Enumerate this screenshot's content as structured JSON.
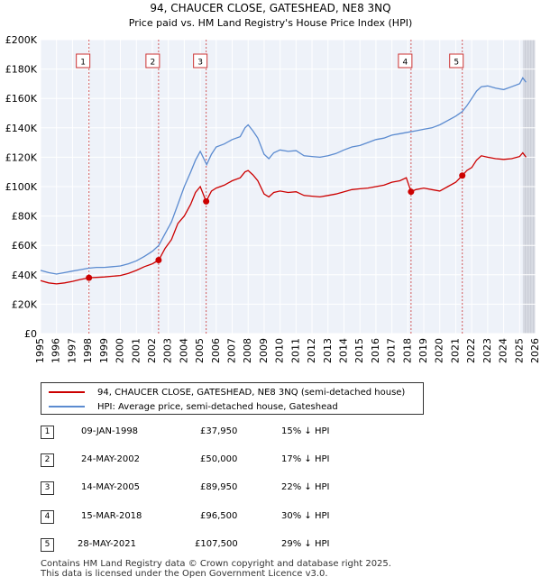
{
  "chart_data": {
    "type": "line",
    "title": "94, CHAUCER CLOSE, GATESHEAD, NE8 3NQ",
    "subtitle": "Price paid vs. HM Land Registry's House Price Index (HPI)",
    "x_range": [
      1995,
      2026
    ],
    "y_range": [
      0,
      200000
    ],
    "x_ticks": [
      "1995",
      "1996",
      "1997",
      "1998",
      "1999",
      "2000",
      "2001",
      "2002",
      "2003",
      "2004",
      "2005",
      "2006",
      "2007",
      "2008",
      "2009",
      "2010",
      "2011",
      "2012",
      "2013",
      "2014",
      "2015",
      "2016",
      "2017",
      "2018",
      "2019",
      "2020",
      "2021",
      "2022",
      "2023",
      "2024",
      "2025",
      "2026"
    ],
    "y_ticks": [
      {
        "value": 0,
        "label": "£0"
      },
      {
        "value": 20000,
        "label": "£20K"
      },
      {
        "value": 40000,
        "label": "£40K"
      },
      {
        "value": 60000,
        "label": "£60K"
      },
      {
        "value": 80000,
        "label": "£80K"
      },
      {
        "value": 100000,
        "label": "£100K"
      },
      {
        "value": 120000,
        "label": "£120K"
      },
      {
        "value": 140000,
        "label": "£140K"
      },
      {
        "value": 160000,
        "label": "£160K"
      },
      {
        "value": 180000,
        "label": "£180K"
      },
      {
        "value": 200000,
        "label": "£200K"
      }
    ],
    "series": [
      {
        "name": "94, CHAUCER CLOSE, GATESHEAD, NE8 3NQ (semi-detached house)",
        "color": "#cc0000",
        "points": [
          [
            1995.0,
            36000
          ],
          [
            1995.5,
            34500
          ],
          [
            1996.0,
            33800
          ],
          [
            1996.5,
            34500
          ],
          [
            1997.0,
            35500
          ],
          [
            1997.5,
            36800
          ],
          [
            1998.03,
            37950
          ],
          [
            1998.5,
            38200
          ],
          [
            1999.0,
            38500
          ],
          [
            1999.5,
            39000
          ],
          [
            2000.0,
            39500
          ],
          [
            2000.5,
            41000
          ],
          [
            2001.0,
            43000
          ],
          [
            2001.5,
            45500
          ],
          [
            2002.0,
            47500
          ],
          [
            2002.4,
            50000
          ],
          [
            2002.8,
            58000
          ],
          [
            2003.2,
            64000
          ],
          [
            2003.6,
            75000
          ],
          [
            2004.0,
            80000
          ],
          [
            2004.4,
            88000
          ],
          [
            2004.7,
            96000
          ],
          [
            2005.0,
            100000
          ],
          [
            2005.37,
            89950
          ],
          [
            2005.7,
            97000
          ],
          [
            2006.0,
            99000
          ],
          [
            2006.5,
            101000
          ],
          [
            2007.0,
            104000
          ],
          [
            2007.5,
            106000
          ],
          [
            2007.8,
            110000
          ],
          [
            2008.0,
            111000
          ],
          [
            2008.3,
            108000
          ],
          [
            2008.6,
            104000
          ],
          [
            2009.0,
            95000
          ],
          [
            2009.3,
            93000
          ],
          [
            2009.6,
            96000
          ],
          [
            2010.0,
            97000
          ],
          [
            2010.5,
            96000
          ],
          [
            2011.0,
            96500
          ],
          [
            2011.5,
            94000
          ],
          [
            2012.0,
            93500
          ],
          [
            2012.5,
            93000
          ],
          [
            2013.0,
            94000
          ],
          [
            2013.5,
            95000
          ],
          [
            2014.0,
            96500
          ],
          [
            2014.5,
            98000
          ],
          [
            2015.0,
            98500
          ],
          [
            2015.5,
            99000
          ],
          [
            2016.0,
            100000
          ],
          [
            2016.5,
            101000
          ],
          [
            2017.0,
            103000
          ],
          [
            2017.5,
            104000
          ],
          [
            2017.9,
            106000
          ],
          [
            2018.2,
            96500
          ],
          [
            2018.5,
            98000
          ],
          [
            2019.0,
            99000
          ],
          [
            2019.5,
            98000
          ],
          [
            2020.0,
            97000
          ],
          [
            2020.5,
            100000
          ],
          [
            2021.0,
            103000
          ],
          [
            2021.41,
            107500
          ],
          [
            2021.7,
            111000
          ],
          [
            2022.0,
            113000
          ],
          [
            2022.3,
            118000
          ],
          [
            2022.6,
            121000
          ],
          [
            2023.0,
            120000
          ],
          [
            2023.5,
            119000
          ],
          [
            2024.0,
            118500
          ],
          [
            2024.5,
            119000
          ],
          [
            2025.0,
            120500
          ],
          [
            2025.2,
            123000
          ],
          [
            2025.4,
            120000
          ]
        ]
      },
      {
        "name": "HPI: Average price, semi-detached house, Gateshead",
        "color": "#5b8bd0",
        "points": [
          [
            1995.0,
            43000
          ],
          [
            1995.5,
            41500
          ],
          [
            1996.0,
            40500
          ],
          [
            1996.5,
            41500
          ],
          [
            1997.0,
            42500
          ],
          [
            1997.5,
            43500
          ],
          [
            1998.0,
            44500
          ],
          [
            1998.5,
            45000
          ],
          [
            1999.0,
            45000
          ],
          [
            1999.5,
            45500
          ],
          [
            2000.0,
            46000
          ],
          [
            2000.5,
            47500
          ],
          [
            2001.0,
            49500
          ],
          [
            2001.5,
            52500
          ],
          [
            2002.0,
            56000
          ],
          [
            2002.4,
            60000
          ],
          [
            2002.8,
            68000
          ],
          [
            2003.2,
            76000
          ],
          [
            2003.6,
            88000
          ],
          [
            2004.0,
            100000
          ],
          [
            2004.4,
            110000
          ],
          [
            2004.7,
            118000
          ],
          [
            2005.0,
            124000
          ],
          [
            2005.4,
            115000
          ],
          [
            2005.7,
            122000
          ],
          [
            2006.0,
            127000
          ],
          [
            2006.5,
            129000
          ],
          [
            2007.0,
            132000
          ],
          [
            2007.5,
            134000
          ],
          [
            2007.8,
            140000
          ],
          [
            2008.0,
            142000
          ],
          [
            2008.3,
            138000
          ],
          [
            2008.6,
            133000
          ],
          [
            2009.0,
            122000
          ],
          [
            2009.3,
            119000
          ],
          [
            2009.6,
            123000
          ],
          [
            2010.0,
            125000
          ],
          [
            2010.5,
            124000
          ],
          [
            2011.0,
            124500
          ],
          [
            2011.5,
            121000
          ],
          [
            2012.0,
            120500
          ],
          [
            2012.5,
            120000
          ],
          [
            2013.0,
            121000
          ],
          [
            2013.5,
            122500
          ],
          [
            2014.0,
            125000
          ],
          [
            2014.5,
            127000
          ],
          [
            2015.0,
            128000
          ],
          [
            2015.5,
            130000
          ],
          [
            2016.0,
            132000
          ],
          [
            2016.5,
            133000
          ],
          [
            2017.0,
            135000
          ],
          [
            2017.5,
            136000
          ],
          [
            2018.0,
            137000
          ],
          [
            2018.5,
            138000
          ],
          [
            2019.0,
            139000
          ],
          [
            2019.5,
            140000
          ],
          [
            2020.0,
            142000
          ],
          [
            2020.5,
            145000
          ],
          [
            2021.0,
            148000
          ],
          [
            2021.4,
            151000
          ],
          [
            2021.7,
            155000
          ],
          [
            2022.0,
            160000
          ],
          [
            2022.3,
            165000
          ],
          [
            2022.6,
            168000
          ],
          [
            2023.0,
            168500
          ],
          [
            2023.5,
            167000
          ],
          [
            2024.0,
            166000
          ],
          [
            2024.5,
            168000
          ],
          [
            2025.0,
            170000
          ],
          [
            2025.2,
            174000
          ],
          [
            2025.4,
            171000
          ]
        ]
      }
    ],
    "sales": [
      {
        "num": "1",
        "x": 1998.03,
        "price": 37950
      },
      {
        "num": "2",
        "x": 2002.39,
        "price": 50000
      },
      {
        "num": "3",
        "x": 2005.37,
        "price": 89950
      },
      {
        "num": "4",
        "x": 2018.2,
        "price": 96500
      },
      {
        "num": "5",
        "x": 2021.41,
        "price": 107500
      }
    ],
    "projection_start": 2025.2
  },
  "legend": {
    "property_label": "94, CHAUCER CLOSE, GATESHEAD, NE8 3NQ (semi-detached house)",
    "hpi_label": "HPI: Average price, semi-detached house, Gateshead",
    "property_color": "#cc0000",
    "hpi_color": "#5b8bd0"
  },
  "sales_table": [
    {
      "num": "1",
      "date": "09-JAN-1998",
      "price": "£37,950",
      "hpi": "15% ↓ HPI"
    },
    {
      "num": "2",
      "date": "24-MAY-2002",
      "price": "£50,000",
      "hpi": "17% ↓ HPI"
    },
    {
      "num": "3",
      "date": "14-MAY-2005",
      "price": "£89,950",
      "hpi": "22% ↓ HPI"
    },
    {
      "num": "4",
      "date": "15-MAR-2018",
      "price": "£96,500",
      "hpi": "30% ↓ HPI"
    },
    {
      "num": "5",
      "date": "28-MAY-2021",
      "price": "£107,500",
      "hpi": "29% ↓ HPI"
    }
  ],
  "footer": {
    "line1": "Contains HM Land Registry data © Crown copyright and database right 2025.",
    "line2": "This data is licensed under the Open Government Licence v3.0."
  }
}
